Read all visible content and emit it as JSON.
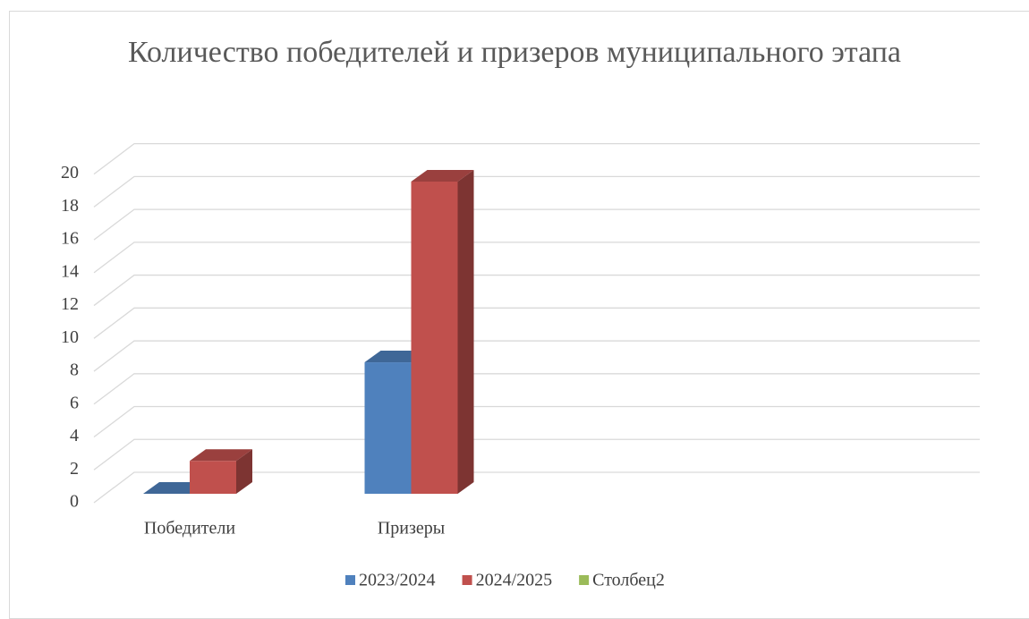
{
  "chart_data": {
    "type": "bar3d",
    "title": "Количество победителей и призеров муниципального этапа",
    "categories": [
      "Победители",
      "Призеры",
      null,
      null
    ],
    "series": [
      {
        "name": "2023/2024",
        "color": "#4f81bd",
        "values": [
          0,
          8,
          null,
          null
        ]
      },
      {
        "name": "2024/2025",
        "color": "#c0504d",
        "values": [
          2,
          19,
          null,
          null
        ]
      },
      {
        "name": "Столбец2",
        "color": "#9bbb59",
        "values": [
          null,
          null,
          null,
          null
        ]
      }
    ],
    "ylim": [
      0,
      20
    ],
    "yticks": [
      0,
      2,
      4,
      6,
      8,
      10,
      12,
      14,
      16,
      18,
      20
    ],
    "grid": true,
    "legend": "bottom"
  }
}
